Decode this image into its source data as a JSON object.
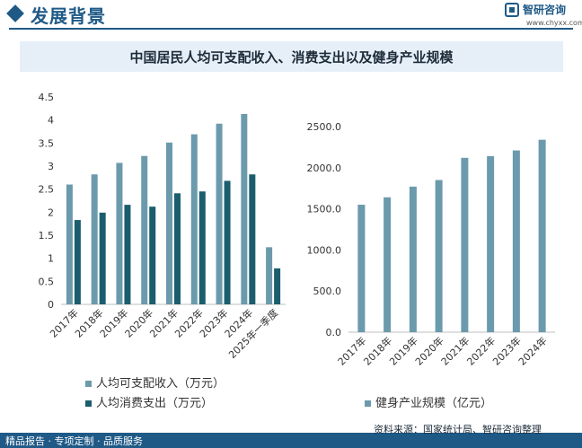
{
  "header": {
    "title": "发展背景",
    "brand": "智研咨询",
    "url": "www.chyxx.com"
  },
  "chart_title": "中国居民人均可支配收入、消费支出以及健身产业规模",
  "footer": {
    "source": "资料来源：国家统计局、智研咨询整理",
    "slogan": "精品报告 · 专项定制 · 品质服务"
  },
  "colors": {
    "brand": "#1f5a87",
    "income_bar": "#6b9aac",
    "spending_bar": "#1a5e6e",
    "fitness_bar": "#6b9aac"
  },
  "chart_data": [
    {
      "type": "bar",
      "categories": [
        "2017年",
        "2018年",
        "2019年",
        "2020年",
        "2021年",
        "2022年",
        "2023年",
        "2024年",
        "2025年一季度"
      ],
      "series": [
        {
          "name": "人均可支配收入（万元）",
          "values": [
            2.6,
            2.82,
            3.07,
            3.22,
            3.51,
            3.69,
            3.92,
            4.13,
            1.24
          ]
        },
        {
          "name": "人均消费支出（万元）",
          "values": [
            1.83,
            1.99,
            2.16,
            2.12,
            2.41,
            2.45,
            2.68,
            2.82,
            0.78
          ]
        }
      ],
      "yticks": [
        "0",
        "0.5",
        "1",
        "1.5",
        "2",
        "2.5",
        "3",
        "3.5",
        "4",
        "4.5"
      ],
      "ylim": [
        0,
        4.5
      ],
      "legend": "bottom",
      "grid": false
    },
    {
      "type": "bar",
      "categories": [
        "2017年",
        "2018年",
        "2019年",
        "2020年",
        "2021年",
        "2022年",
        "2023年",
        "2024年"
      ],
      "series": [
        {
          "name": "健身产业规模（亿元）",
          "values": [
            1550,
            1640,
            1770,
            1850,
            2120,
            2140,
            2210,
            2340
          ]
        }
      ],
      "yticks": [
        "0.0",
        "500.0",
        "1000.0",
        "1500.0",
        "2000.0",
        "2500.0"
      ],
      "ylim": [
        0,
        2500
      ],
      "legend": "bottom",
      "grid": false
    }
  ]
}
